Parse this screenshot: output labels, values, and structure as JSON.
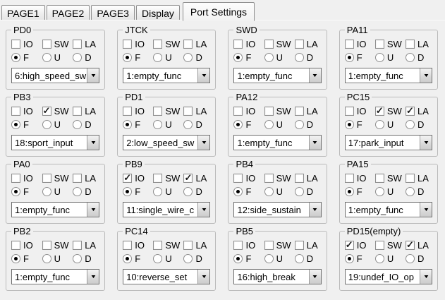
{
  "window": {
    "background": "#f0f0f0",
    "active_tab": "Port Settings"
  },
  "tabs": [
    {
      "label": "PAGE1",
      "active": false
    },
    {
      "label": "PAGE2",
      "active": false
    },
    {
      "label": "PAGE3",
      "active": false
    },
    {
      "label": "Display",
      "active": false
    },
    {
      "label": "Port Settings",
      "active": true
    }
  ],
  "port_panel": {
    "checkbox_labels": [
      "IO",
      "SW",
      "LA"
    ],
    "radio_labels": [
      "F",
      "U",
      "D"
    ],
    "ports": [
      {
        "name": "PD0",
        "checks": [
          false,
          false,
          false
        ],
        "mode": "F",
        "func": "6:high_speed_sw"
      },
      {
        "name": "JTCK",
        "checks": [
          false,
          false,
          false
        ],
        "mode": "F",
        "func": "1:empty_func"
      },
      {
        "name": "SWD",
        "checks": [
          false,
          false,
          false
        ],
        "mode": "F",
        "func": "1:empty_func"
      },
      {
        "name": "PA11",
        "checks": [
          false,
          false,
          false
        ],
        "mode": "F",
        "func": "1:empty_func"
      },
      {
        "name": "PB3",
        "checks": [
          false,
          true,
          false
        ],
        "mode": "F",
        "func": "18:sport_input"
      },
      {
        "name": "PD1",
        "checks": [
          false,
          false,
          false
        ],
        "mode": "F",
        "func": "2:low_speed_sw"
      },
      {
        "name": "PA12",
        "checks": [
          false,
          false,
          false
        ],
        "mode": "F",
        "func": "1:empty_func"
      },
      {
        "name": "PC15",
        "checks": [
          false,
          true,
          true
        ],
        "mode": "F",
        "func": "17:park_input"
      },
      {
        "name": "PA0",
        "checks": [
          false,
          false,
          false
        ],
        "mode": "F",
        "func": "1:empty_func"
      },
      {
        "name": "PB9",
        "checks": [
          true,
          false,
          true
        ],
        "mode": "F",
        "func": "11:single_wire_c"
      },
      {
        "name": "PB4",
        "checks": [
          false,
          false,
          false
        ],
        "mode": "F",
        "func": "12:side_sustain"
      },
      {
        "name": "PA15",
        "checks": [
          false,
          false,
          false
        ],
        "mode": "F",
        "func": "1:empty_func"
      },
      {
        "name": "PB2",
        "checks": [
          false,
          false,
          false
        ],
        "mode": "F",
        "func": "1:empty_func"
      },
      {
        "name": "PC14",
        "checks": [
          false,
          false,
          false
        ],
        "mode": "F",
        "func": "10:reverse_set"
      },
      {
        "name": "PB5",
        "checks": [
          false,
          false,
          false
        ],
        "mode": "F",
        "func": "16:high_break"
      },
      {
        "name": "PD15(empty)",
        "checks": [
          true,
          false,
          true
        ],
        "mode": "F",
        "func": "19:undef_IO_op"
      }
    ]
  },
  "icons": {
    "dropdown_arrow": "▼",
    "check": "✓"
  },
  "colors": {
    "background": "#f0f0f0",
    "field": "#ffffff",
    "border": "#bababa",
    "text": "#000000"
  }
}
